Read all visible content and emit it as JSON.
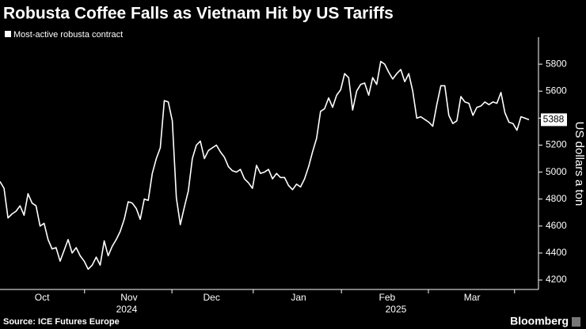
{
  "chart_data": {
    "type": "line",
    "title": "Robusta Coffee Falls as Vietnam Hit by US Tariffs",
    "y_label": "US dollars a ton",
    "source": "Source: ICE Futures Europe",
    "brand": "Bloomberg",
    "series": [
      {
        "name": "Most-active robusta contract",
        "color": "#ffffff",
        "values": [
          4930,
          4880,
          4660,
          4690,
          4710,
          4750,
          4680,
          4840,
          4770,
          4750,
          4600,
          4620,
          4500,
          4430,
          4440,
          4340,
          4420,
          4500,
          4400,
          4440,
          4380,
          4340,
          4280,
          4310,
          4370,
          4310,
          4490,
          4380,
          4450,
          4500,
          4560,
          4650,
          4780,
          4770,
          4730,
          4650,
          4800,
          4790,
          4990,
          5100,
          5180,
          5530,
          5520,
          5380,
          4810,
          4610,
          4740,
          4860,
          5100,
          5200,
          5230,
          5100,
          5160,
          5180,
          5200,
          5150,
          5110,
          5040,
          5010,
          5000,
          5020,
          4950,
          4920,
          4880,
          5050,
          4990,
          5000,
          5020,
          4950,
          4990,
          4960,
          4960,
          4900,
          4870,
          4910,
          4890,
          4950,
          5040,
          5150,
          5250,
          5450,
          5470,
          5550,
          5480,
          5570,
          5610,
          5730,
          5700,
          5460,
          5600,
          5650,
          5660,
          5570,
          5700,
          5650,
          5820,
          5800,
          5740,
          5690,
          5730,
          5760,
          5670,
          5730,
          5600,
          5400,
          5410,
          5390,
          5370,
          5340,
          5500,
          5640,
          5640,
          5420,
          5360,
          5380,
          5560,
          5520,
          5510,
          5420,
          5480,
          5490,
          5520,
          5500,
          5520,
          5510,
          5590,
          5440,
          5370,
          5360,
          5310,
          5410,
          5400,
          5388
        ]
      }
    ],
    "xlim": [
      0,
      132
    ],
    "xticks": [
      {
        "value": 10.5,
        "label": "Oct"
      },
      {
        "value": 32.2,
        "label": "Nov"
      },
      {
        "value": 52.8,
        "label": "Dec"
      },
      {
        "value": 74.5,
        "label": "Jan"
      },
      {
        "value": 96.6,
        "label": "Feb"
      },
      {
        "value": 117.8,
        "label": "Mar"
      }
    ],
    "x_minor_ticks": [
      21.1,
      42.9,
      63.2,
      85.2,
      106.9,
      128.4
    ],
    "x_year_labels": [
      {
        "value": 31.6,
        "label": "2024"
      },
      {
        "value": 98.8,
        "label": "2025"
      }
    ],
    "ylim": [
      4130,
      6000
    ],
    "yticks": [
      4200,
      4400,
      4600,
      4800,
      5000,
      5200,
      5400,
      5600,
      5800
    ],
    "grid": false
  }
}
